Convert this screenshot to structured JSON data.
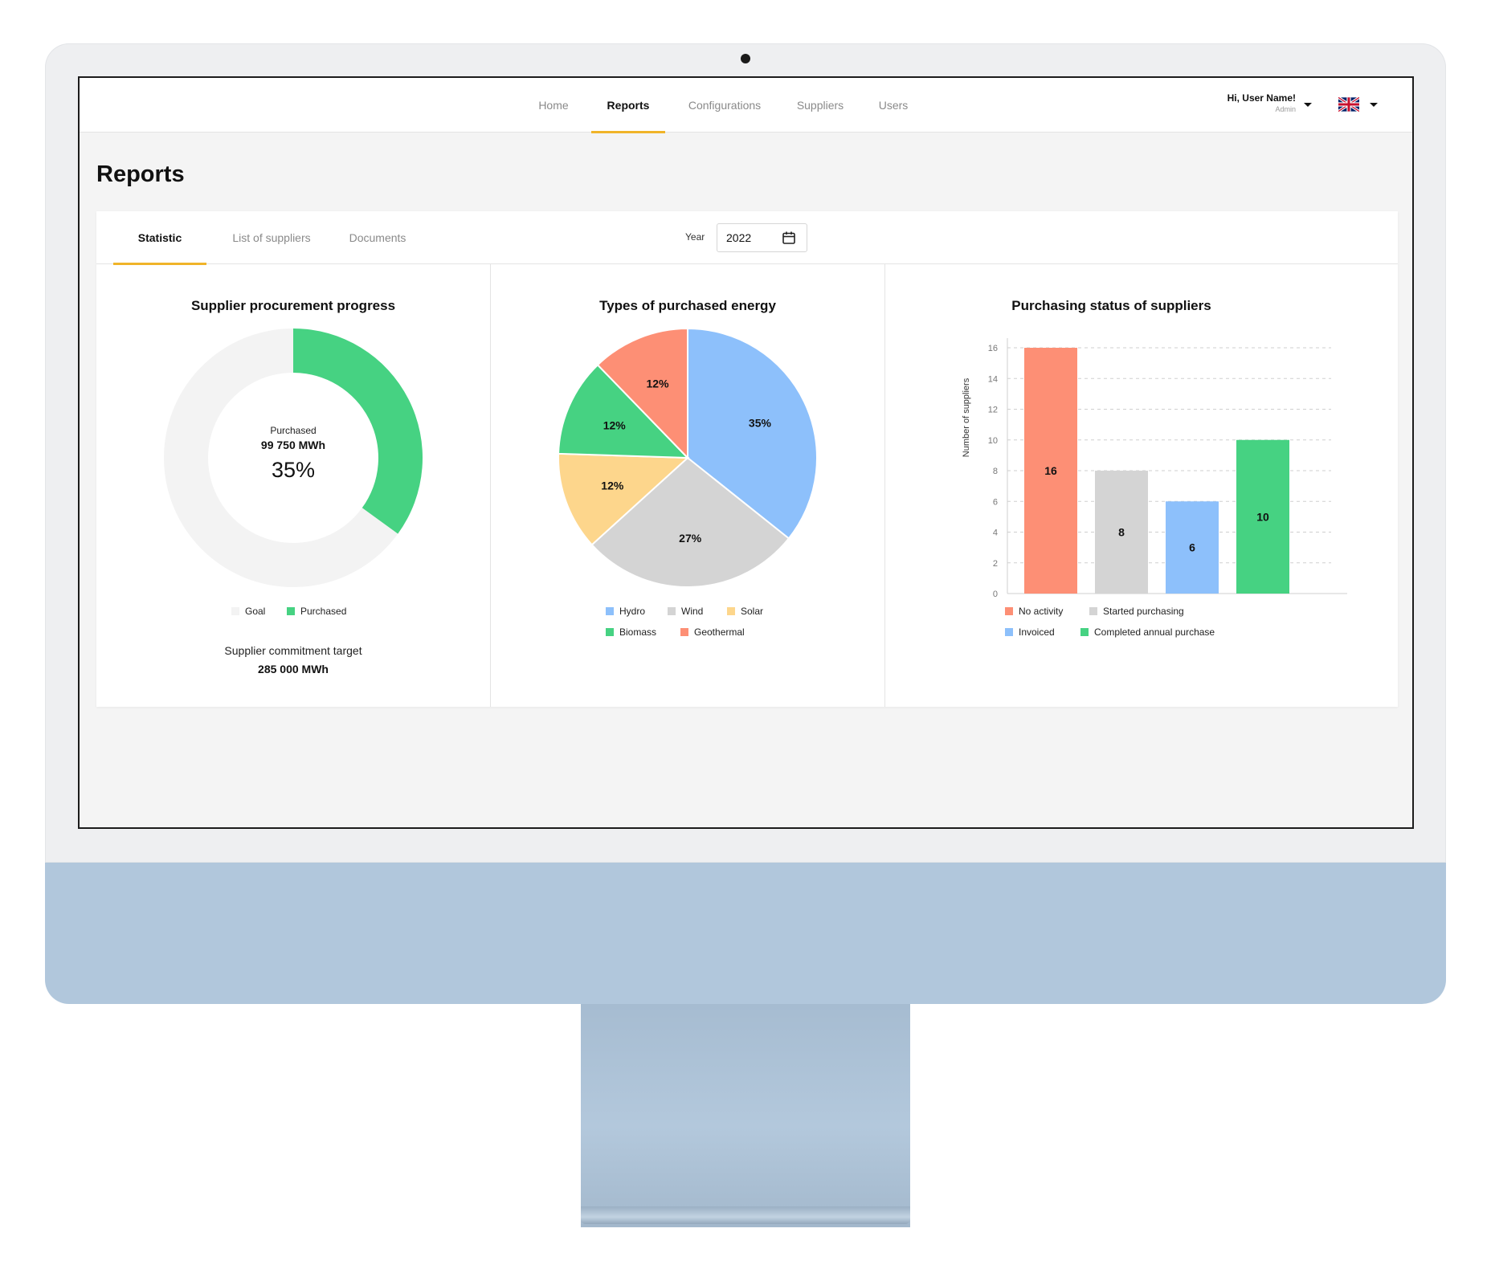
{
  "nav": {
    "items": [
      {
        "label": "Home",
        "active": false
      },
      {
        "label": "Reports",
        "active": true
      },
      {
        "label": "Configurations",
        "active": false
      },
      {
        "label": "Suppliers",
        "active": false
      },
      {
        "label": "Users",
        "active": false
      }
    ]
  },
  "user": {
    "greeting": "Hi, User Name!",
    "role": "Admin",
    "language_flag": "uk-flag-icon"
  },
  "page": {
    "title": "Reports"
  },
  "tabs": [
    {
      "label": "Statistic",
      "active": true
    },
    {
      "label": "List of suppliers",
      "active": false
    },
    {
      "label": "Documents",
      "active": false
    }
  ],
  "filter": {
    "year_label": "Year",
    "year_value": "2022",
    "icon": "calendar-icon"
  },
  "colors": {
    "accent": "#f0b429",
    "goal": "#f3f3f3",
    "green": "#46d282",
    "blue": "#8dc0fb",
    "grey": "#d4d4d4",
    "yellow": "#fdd68c",
    "orange": "#fd8f75"
  },
  "procurement": {
    "title": "Supplier procurement progress",
    "center_label": "Purchased",
    "center_value": "99 750 MWh",
    "center_percent": "35%",
    "legend": [
      {
        "label": "Goal",
        "color": "#f3f3f3"
      },
      {
        "label": "Purchased",
        "color": "#46d282"
      }
    ],
    "target_label": "Supplier commitment target",
    "target_value": "285 000 MWh"
  },
  "energy": {
    "title": "Types of purchased energy",
    "legend": [
      {
        "label": "Hydro",
        "color": "#8dc0fb"
      },
      {
        "label": "Wind",
        "color": "#d4d4d4"
      },
      {
        "label": "Solar",
        "color": "#fdd68c"
      },
      {
        "label": "Biomass",
        "color": "#46d282"
      },
      {
        "label": "Geothermal",
        "color": "#fd8f75"
      }
    ]
  },
  "status": {
    "title": "Purchasing status of suppliers",
    "ylabel": "Number of suppliers",
    "legend": [
      {
        "label": "No activity",
        "color": "#fd8f75"
      },
      {
        "label": "Started purchasing",
        "color": "#d4d4d4"
      },
      {
        "label": "Invoiced",
        "color": "#8dc0fb"
      },
      {
        "label": "Completed annual purchase",
        "color": "#46d282"
      }
    ]
  },
  "chart_data": [
    {
      "type": "pie",
      "title": "Supplier procurement progress",
      "labels": [
        "Purchased",
        "Goal"
      ],
      "values": [
        35,
        65
      ],
      "colors": [
        "#46d282",
        "#f3f3f3"
      ],
      "donut": true
    },
    {
      "type": "pie",
      "title": "Types of purchased energy",
      "labels": [
        "Hydro",
        "Wind",
        "Solar",
        "Biomass",
        "Geothermal"
      ],
      "values": [
        35,
        27,
        12,
        12,
        12
      ],
      "value_labels": [
        "35%",
        "27%",
        "12%",
        "12%",
        "12%"
      ],
      "colors": [
        "#8dc0fb",
        "#d4d4d4",
        "#fdd68c",
        "#46d282",
        "#fd8f75"
      ]
    },
    {
      "type": "bar",
      "title": "Purchasing status of suppliers",
      "categories": [
        "No activity",
        "Started purchasing",
        "Invoiced",
        "Completed annual purchase"
      ],
      "values": [
        16,
        8,
        6,
        10
      ],
      "colors": [
        "#fd8f75",
        "#d4d4d4",
        "#8dc0fb",
        "#46d282"
      ],
      "ylabel": "Number of suppliers",
      "ylim": [
        0,
        16
      ],
      "yticks": [
        0,
        2,
        4,
        6,
        8,
        10,
        12,
        14,
        16
      ],
      "grid": true,
      "legend": "bottom"
    }
  ]
}
